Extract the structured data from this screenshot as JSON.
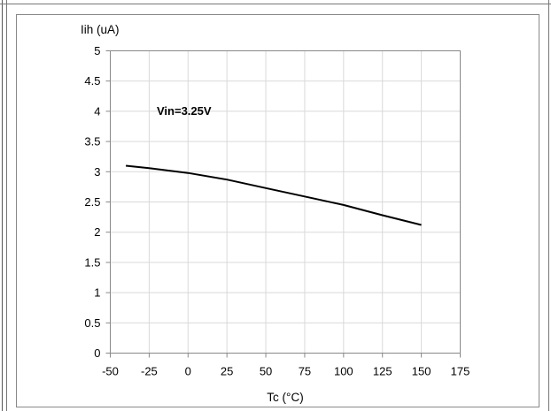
{
  "chart_data": {
    "type": "line",
    "xlabel": "Tc (°C)",
    "ylabel": "Iih (uA)",
    "annotation": "Vin=3.25V",
    "xlim": [
      -50,
      175
    ],
    "ylim": [
      0,
      5
    ],
    "x_ticks": [
      -50,
      -25,
      0,
      25,
      50,
      75,
      100,
      125,
      150,
      175
    ],
    "y_ticks": [
      0,
      0.5,
      1,
      1.5,
      2,
      2.5,
      3,
      3.5,
      4,
      4.5,
      5
    ],
    "grid": true,
    "series": [
      {
        "x": [
          -40,
          -25,
          0,
          25,
          50,
          75,
          100,
          125,
          150
        ],
        "y": [
          3.1,
          3.06,
          2.98,
          2.87,
          2.73,
          2.59,
          2.45,
          2.28,
          2.12
        ]
      }
    ],
    "colors": {
      "line": "#000000",
      "grid": "#d9d9d9",
      "border": "#555555"
    }
  }
}
